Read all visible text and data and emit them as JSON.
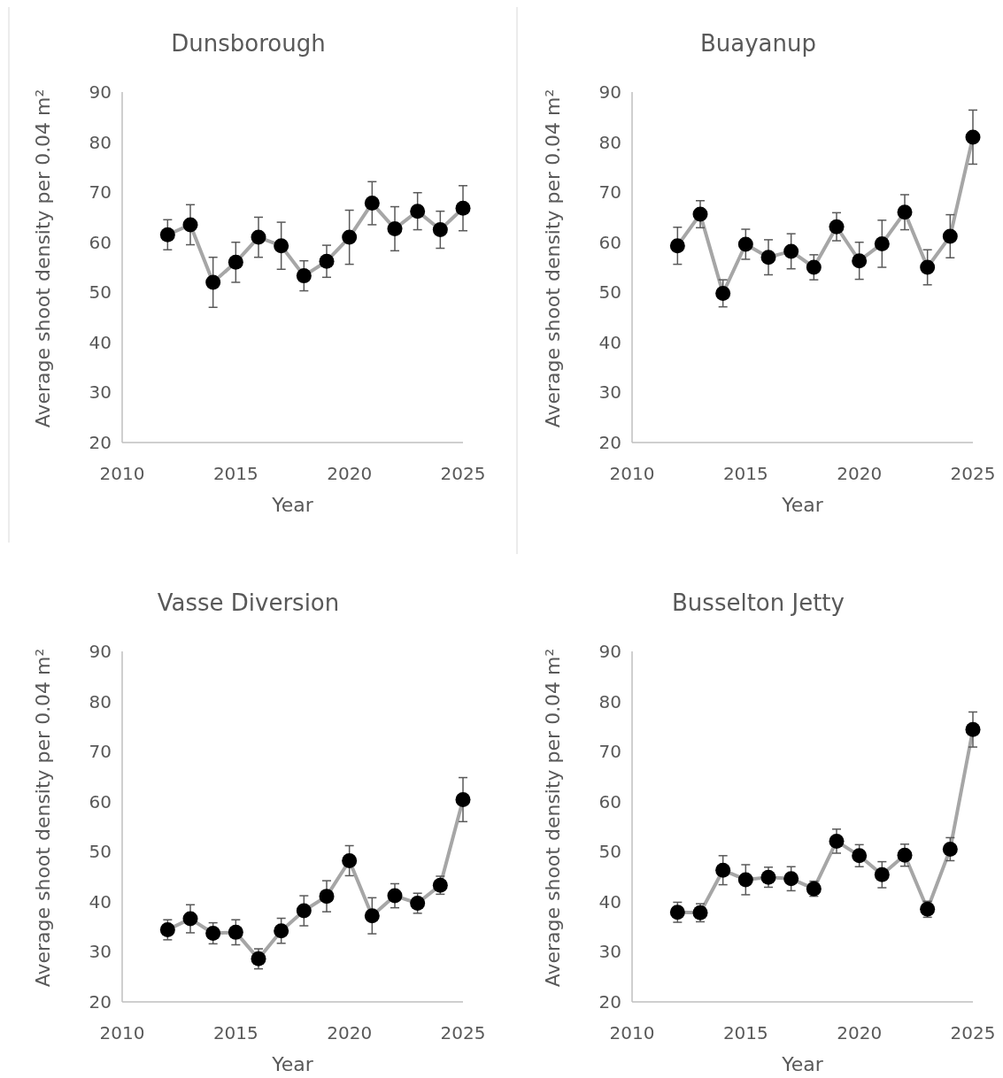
{
  "chart_data": [
    {
      "type": "line",
      "title": "Dunsborough",
      "xlabel": "Year",
      "ylabel": "Average shoot density per 0.04 m²",
      "x": [
        2012,
        2013,
        2014,
        2015,
        2016,
        2017,
        2018,
        2019,
        2020,
        2021,
        2022,
        2023,
        2024,
        2025
      ],
      "xlim": [
        2010,
        2025
      ],
      "xticks": [
        2010,
        2015,
        2020,
        2025
      ],
      "ylim": [
        20,
        90
      ],
      "yticks": [
        20,
        30,
        40,
        50,
        60,
        70,
        80,
        90
      ],
      "grid": false,
      "marker": "circle",
      "line_style": "solid",
      "series": [
        {
          "color": "#a6a6a6",
          "values": [
            61.5,
            63.5,
            52,
            56,
            61,
            59.3,
            53.3,
            56.2,
            61,
            67.8,
            62.7,
            66.2,
            62.5,
            66.8
          ],
          "errors": [
            3,
            4,
            5,
            4,
            4,
            4.7,
            3,
            3.2,
            5.4,
            4.3,
            4.4,
            3.7,
            3.7,
            4.5
          ]
        }
      ]
    },
    {
      "type": "line",
      "title": "Buayanup",
      "xlabel": "Year",
      "ylabel": "Average shoot density per 0.04 m²",
      "x": [
        2012,
        2013,
        2014,
        2015,
        2016,
        2017,
        2018,
        2019,
        2020,
        2021,
        2022,
        2023,
        2024,
        2025
      ],
      "xlim": [
        2010,
        2025
      ],
      "xticks": [
        2010,
        2015,
        2020,
        2025
      ],
      "ylim": [
        20,
        90
      ],
      "yticks": [
        20,
        30,
        40,
        50,
        60,
        70,
        80,
        90
      ],
      "grid": false,
      "marker": "circle",
      "line_style": "solid",
      "series": [
        {
          "color": "#a6a6a6",
          "values": [
            59.3,
            65.6,
            49.8,
            59.6,
            57,
            58.2,
            55,
            63.1,
            56.3,
            59.7,
            66,
            55,
            61.2,
            81
          ],
          "errors": [
            3.7,
            2.7,
            2.7,
            3,
            3.5,
            3.5,
            2.5,
            2.8,
            3.7,
            4.7,
            3.5,
            3.5,
            4.3,
            5.4
          ]
        }
      ]
    },
    {
      "type": "line",
      "title": "Vasse Diversion",
      "xlabel": "Year",
      "ylabel": "Average shoot density per 0.04 m²",
      "x": [
        2012,
        2013,
        2014,
        2015,
        2016,
        2017,
        2018,
        2019,
        2020,
        2021,
        2022,
        2023,
        2024,
        2025
      ],
      "xlim": [
        2010,
        2025
      ],
      "xticks": [
        2010,
        2015,
        2020,
        2025
      ],
      "ylim": [
        20,
        90
      ],
      "yticks": [
        20,
        30,
        40,
        50,
        60,
        70,
        80,
        90
      ],
      "grid": false,
      "marker": "circle",
      "line_style": "solid",
      "series": [
        {
          "color": "#a6a6a6",
          "values": [
            34.4,
            36.6,
            33.7,
            33.9,
            28.6,
            34.2,
            38.2,
            41.1,
            48.2,
            37.2,
            41.2,
            39.7,
            43.3,
            60.4
          ],
          "errors": [
            2,
            2.8,
            2.1,
            2.5,
            2,
            2.5,
            3,
            3.1,
            3,
            3.6,
            2.4,
            2,
            1.8,
            4.4
          ]
        }
      ]
    },
    {
      "type": "line",
      "title": "Busselton Jetty",
      "xlabel": "Year",
      "ylabel": "Average shoot density per 0.04 m²",
      "x": [
        2012,
        2013,
        2014,
        2015,
        2016,
        2017,
        2018,
        2019,
        2020,
        2021,
        2022,
        2023,
        2024,
        2025
      ],
      "xlim": [
        2010,
        2025
      ],
      "xticks": [
        2010,
        2015,
        2020,
        2025
      ],
      "ylim": [
        20,
        90
      ],
      "yticks": [
        20,
        30,
        40,
        50,
        60,
        70,
        80,
        90
      ],
      "grid": false,
      "marker": "circle",
      "line_style": "solid",
      "series": [
        {
          "color": "#a6a6a6",
          "values": [
            37.9,
            37.8,
            46.3,
            44.4,
            44.9,
            44.6,
            42.6,
            52.1,
            49.2,
            45.4,
            49.3,
            38.5,
            50.5,
            74.4
          ],
          "errors": [
            2,
            1.8,
            2.9,
            3,
            2,
            2.4,
            1.5,
            2.4,
            2.2,
            2.6,
            2.2,
            1.6,
            2.3,
            3.5
          ]
        }
      ]
    }
  ]
}
